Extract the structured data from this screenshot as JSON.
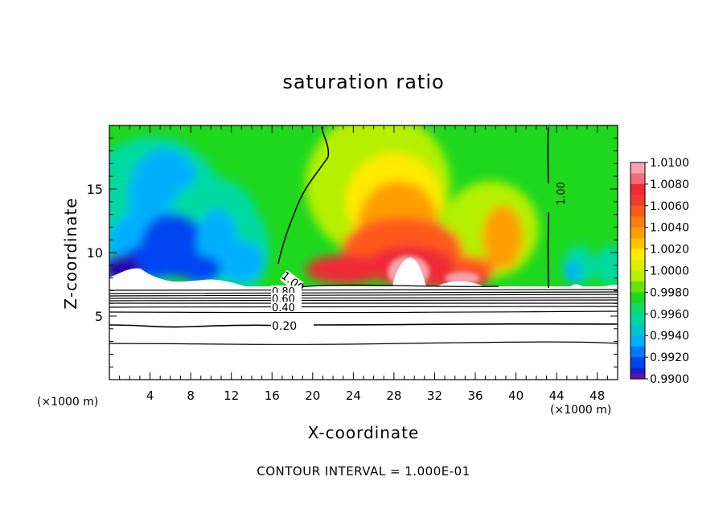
{
  "chart_data": {
    "type": "heatmap",
    "title": "saturation ratio",
    "xlabel": "X-coordinate",
    "ylabel": "Z-coordinate",
    "x_unit_label": "(×1000 m)",
    "xlim": [
      0,
      50
    ],
    "ylim": [
      0,
      20
    ],
    "x_ticks": [
      4,
      8,
      12,
      16,
      20,
      24,
      28,
      32,
      36,
      40,
      44,
      48
    ],
    "y_ticks": [
      5,
      10,
      15
    ],
    "colorbar": {
      "min": 0.99,
      "max": 1.01,
      "levels": [
        {
          "value": "1.0100",
          "color": "#f5a3ae"
        },
        {
          "value": "1.0080",
          "color": "#ee2a36"
        },
        {
          "value": "1.0060",
          "color": "#ff5a1a"
        },
        {
          "value": "1.0040",
          "color": "#ff9e00"
        },
        {
          "value": "1.0020",
          "color": "#ffea00"
        },
        {
          "value": "1.0000",
          "color": "#b4f000"
        },
        {
          "value": "0.9980",
          "color": "#1ed81e"
        },
        {
          "value": "0.9960",
          "color": "#00d9a0"
        },
        {
          "value": "0.9940",
          "color": "#00b0ff"
        },
        {
          "value": "0.9920",
          "color": "#0044f0"
        },
        {
          "value": "0.9900",
          "color": "#2600a8"
        }
      ],
      "bottom_color": "#6a0fa6"
    },
    "contour_labels": [
      "1.00",
      "1.00",
      "0.80",
      "0.60",
      "0.40",
      "0.20"
    ],
    "footnote": "CONTOUR INTERVAL = 1.000E-01"
  }
}
